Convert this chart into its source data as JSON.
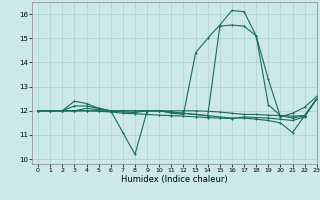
{
  "xlabel": "Humidex (Indice chaleur)",
  "xlim": [
    -0.5,
    23
  ],
  "ylim": [
    9.8,
    16.5
  ],
  "yticks": [
    10,
    11,
    12,
    13,
    14,
    15,
    16
  ],
  "xticks": [
    0,
    1,
    2,
    3,
    4,
    5,
    6,
    7,
    8,
    9,
    10,
    11,
    12,
    13,
    14,
    15,
    16,
    17,
    18,
    19,
    20,
    21,
    22,
    23
  ],
  "bg_color": "#cce8e8",
  "line_color": "#1a6b60",
  "grid_color": "#b0d0d0",
  "lines": [
    [
      12.0,
      12.0,
      12.0,
      12.4,
      12.3,
      12.1,
      12.0,
      11.1,
      10.2,
      12.0,
      12.0,
      11.9,
      11.85,
      14.4,
      15.0,
      15.55,
      16.15,
      16.1,
      15.1,
      13.3,
      11.75,
      11.9,
      12.15,
      12.6
    ],
    [
      12.0,
      12.0,
      12.0,
      12.0,
      12.1,
      12.05,
      12.0,
      12.0,
      12.0,
      12.0,
      12.0,
      11.95,
      11.9,
      11.85,
      11.8,
      11.75,
      11.7,
      11.7,
      11.65,
      11.6,
      11.5,
      11.1,
      11.8,
      12.5
    ],
    [
      12.0,
      12.0,
      12.0,
      12.0,
      12.0,
      11.98,
      11.95,
      11.9,
      11.88,
      11.85,
      11.82,
      11.8,
      11.78,
      11.75,
      11.72,
      11.7,
      11.68,
      11.75,
      11.72,
      11.7,
      11.65,
      11.6,
      11.75,
      12.5
    ],
    [
      12.0,
      12.0,
      12.0,
      12.0,
      12.0,
      12.0,
      11.98,
      11.95,
      11.93,
      12.0,
      12.0,
      12.0,
      12.0,
      12.0,
      11.98,
      11.95,
      11.9,
      11.85,
      11.85,
      11.82,
      11.8,
      11.78,
      11.8,
      12.5
    ],
    [
      12.0,
      12.0,
      12.0,
      12.2,
      12.2,
      12.1,
      12.0,
      12.0,
      12.0,
      12.0,
      12.0,
      11.95,
      11.9,
      11.85,
      11.8,
      15.5,
      15.55,
      15.5,
      15.1,
      12.25,
      11.8,
      11.7,
      11.8,
      12.5
    ]
  ],
  "markersize": 2.0
}
